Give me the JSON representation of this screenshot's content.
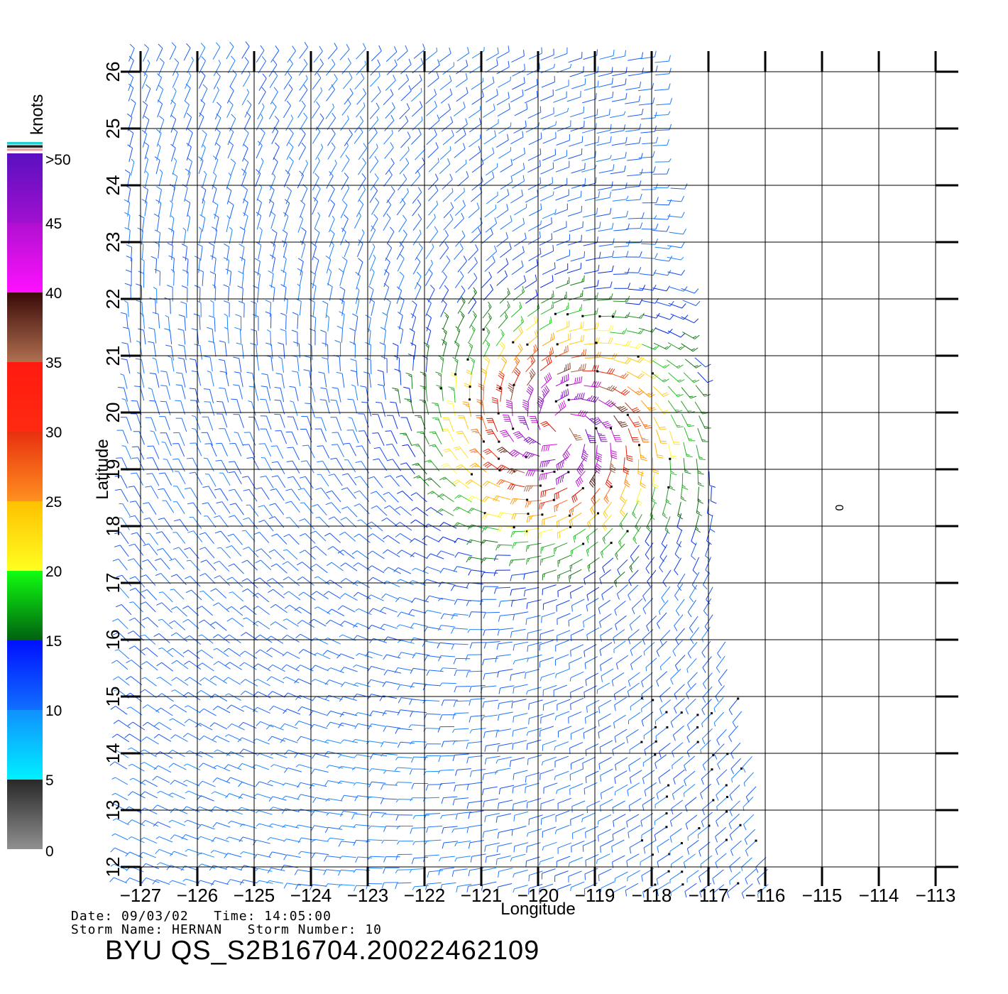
{
  "map": {
    "title": "",
    "xlabel": "Longitude",
    "ylabel": "Latitude",
    "lon_range": [
      -127,
      -113
    ],
    "lat_range": [
      12,
      26
    ],
    "lon_ticks": [
      "−127",
      "−126",
      "−125",
      "−124",
      "−123",
      "−122",
      "−121",
      "−120",
      "−119",
      "−118",
      "−117",
      "−116",
      "−115",
      "−114",
      "−113"
    ],
    "lat_ticks": [
      "12",
      "13",
      "14",
      "15",
      "16",
      "17",
      "18",
      "19",
      "20",
      "21",
      "22",
      "23",
      "24",
      "25",
      "26"
    ],
    "grid": true,
    "stray_label": "0",
    "storm_center": {
      "lon": -119.6,
      "lat": 19.7
    },
    "max_radius_deg": 3.2,
    "swath_edge": [
      {
        "lat": 26,
        "lon": -117.9
      },
      {
        "lat": 24,
        "lon": -117.7
      },
      {
        "lat": 22,
        "lon": -117.4
      },
      {
        "lat": 20,
        "lon": -117.0
      },
      {
        "lat": 18,
        "lon": -116.9
      },
      {
        "lat": 16,
        "lon": -116.7
      },
      {
        "lat": 14,
        "lon": -116.2
      },
      {
        "lat": 12,
        "lon": -115.9
      }
    ]
  },
  "colorbar": {
    "unit": "knots",
    "labels": [
      ">50",
      "45",
      "40",
      "35",
      "30",
      "25",
      "20",
      "15",
      "10",
      "5",
      "0"
    ],
    "bands": [
      {
        "from": 45,
        "to": 50,
        "top": "#5a10c0",
        "bottom": "#a010d0"
      },
      {
        "from": 40,
        "to": 45,
        "top": "#b010d0",
        "bottom": "#ff10ff"
      },
      {
        "from": 35,
        "to": 40,
        "top": "#3a0a08",
        "bottom": "#b07050"
      },
      {
        "from": 30,
        "to": 35,
        "top": "#ff1a10",
        "bottom": "#ff2a10"
      },
      {
        "from": 25,
        "to": 30,
        "top": "#e83010",
        "bottom": "#ff9020"
      },
      {
        "from": 20,
        "to": 25,
        "top": "#ffc000",
        "bottom": "#ffff20"
      },
      {
        "from": 15,
        "to": 20,
        "top": "#10ff10",
        "bottom": "#006010"
      },
      {
        "from": 10,
        "to": 15,
        "top": "#0010ff",
        "bottom": "#1070ff"
      },
      {
        "from": 5,
        "to": 10,
        "top": "#1090ff",
        "bottom": "#00f0ff"
      },
      {
        "from": 0,
        "to": 5,
        "top": "#282828",
        "bottom": "#909090"
      }
    ],
    "top_strips": [
      "#20d0d0",
      "#202020",
      "#f0a0a0"
    ]
  },
  "footer": {
    "date_label": "Date:",
    "date": "09/03/02",
    "time_label": "Time:",
    "time": "14:05:00",
    "storm_name_label": "Storm Name:",
    "storm_name": "HERNAN",
    "storm_number_label": "Storm Number:",
    "storm_number": "10",
    "file_id": "BYU QS_S2B16704.20022462109"
  }
}
